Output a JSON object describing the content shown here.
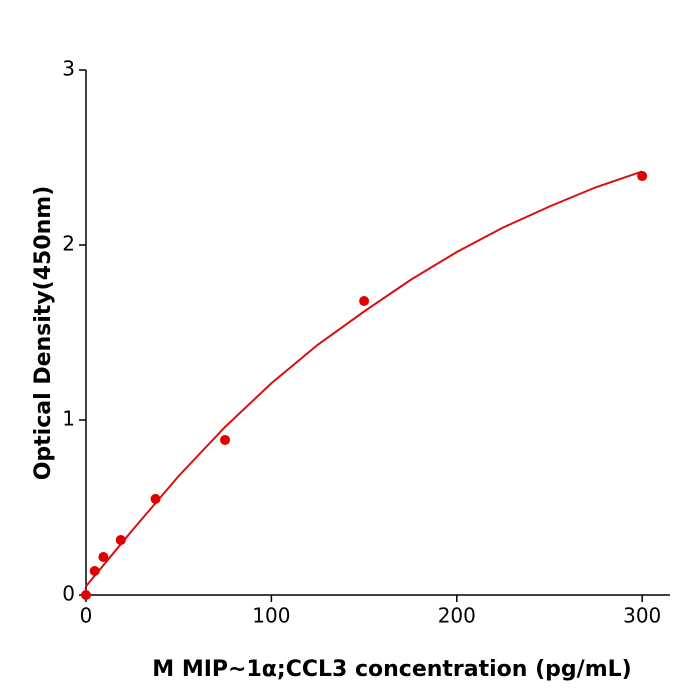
{
  "chart_data": {
    "type": "scatter",
    "x_label": "M  MIP~1α;CCL3 concentration (pg/mL)",
    "y_label": "Optical Density(450nm)",
    "xlim": [
      0,
      315
    ],
    "ylim": [
      0,
      3
    ],
    "xticks": [
      0,
      100,
      200,
      300
    ],
    "yticks": [
      0,
      1,
      2,
      3
    ],
    "grid": false,
    "series": [
      {
        "color": "#e00000",
        "x": [
          0,
          4.69,
          9.38,
          18.75,
          37.5,
          75,
          150,
          300
        ],
        "values": [
          0,
          0.137,
          0.217,
          0.314,
          0.549,
          0.886,
          1.68,
          2.394
        ]
      },
      {
        "color": "#d81010",
        "x": [
          0,
          25,
          50,
          75,
          100,
          125,
          150,
          175,
          200,
          225,
          250,
          275,
          300
        ],
        "values": [
          0.05,
          0.37,
          0.68,
          0.96,
          1.21,
          1.43,
          1.62,
          1.8,
          1.96,
          2.1,
          2.22,
          2.33,
          2.42
        ]
      }
    ]
  }
}
